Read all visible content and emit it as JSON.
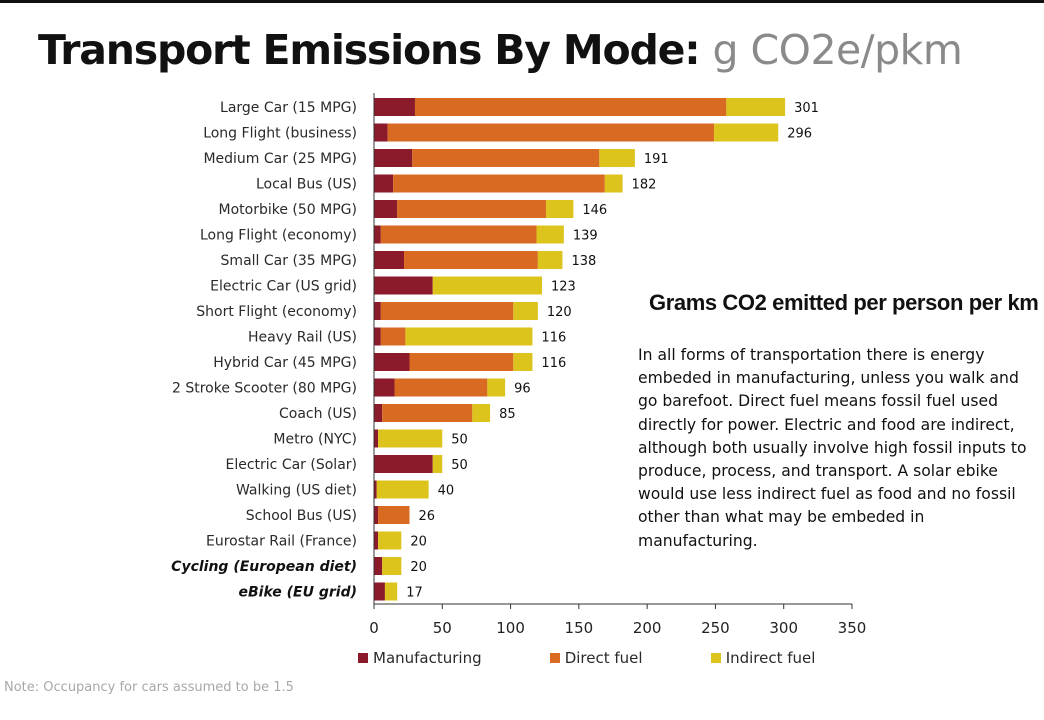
{
  "title": {
    "main": "Transport Emissions By Mode:",
    "unit": "g CO2e/pkm"
  },
  "colors": {
    "manufacturing": "#8b1a2b",
    "direct_fuel": "#d86a22",
    "indirect_fuel": "#dcc41c",
    "axis": "#333333"
  },
  "chart_data": {
    "type": "bar",
    "orientation": "horizontal",
    "stacked": true,
    "categories": [
      "Large Car (15 MPG)",
      "Long Flight (business)",
      "Medium Car (25 MPG)",
      "Local Bus (US)",
      "Motorbike (50 MPG)",
      "Long Flight (economy)",
      "Small Car (35 MPG)",
      "Electric Car (US grid)",
      "Short Flight (economy)",
      "Heavy Rail (US)",
      "Hybrid Car (45 MPG)",
      "2 Stroke Scooter (80 MPG)",
      "Coach (US)",
      "Metro (NYC)",
      "Electric Car (Solar)",
      "Walking (US diet)",
      "School Bus (US)",
      "Eurostar Rail (France)",
      "Cycling (European diet)",
      "eBike (EU grid)"
    ],
    "emphasized_categories": [
      "Cycling (European diet)",
      "eBike (EU grid)"
    ],
    "series": [
      {
        "name": "Manufacturing",
        "values": [
          30,
          10,
          28,
          14,
          17,
          5,
          22,
          43,
          5,
          5,
          26,
          15,
          6,
          3,
          43,
          2,
          3,
          3,
          6,
          8
        ]
      },
      {
        "name": "Direct fuel",
        "values": [
          228,
          239,
          137,
          155,
          109,
          114,
          98,
          0,
          97,
          18,
          76,
          68,
          66,
          0,
          0,
          0,
          23,
          0,
          0,
          0
        ]
      },
      {
        "name": "Indirect fuel",
        "values": [
          43,
          47,
          26,
          13,
          20,
          20,
          18,
          80,
          18,
          93,
          14,
          13,
          13,
          47,
          7,
          38,
          0,
          17,
          14,
          9
        ]
      }
    ],
    "totals": [
      301,
      296,
      191,
      182,
      146,
      139,
      138,
      123,
      120,
      116,
      116,
      96,
      85,
      50,
      50,
      40,
      26,
      20,
      20,
      17
    ],
    "xlim": [
      0,
      350
    ],
    "xticks": [
      0,
      50,
      100,
      150,
      200,
      250,
      300,
      350
    ],
    "grid": false,
    "legend_position": "bottom"
  },
  "legend": {
    "manufacturing": "Manufacturing",
    "direct_fuel": "Direct fuel",
    "indirect_fuel": "Indirect fuel"
  },
  "panel": {
    "heading": "Grams CO2 emitted per person per km",
    "body": "In all forms of transportation there is energy embeded in manufacturing, unless you walk and go barefoot. Direct fuel means fossil fuel used directly for power. Electric and food are indirect, although both usually involve high fossil inputs to produce,  process, and transport. A solar ebike would use less indirect fuel as food and no fossil other than what may be embeded in manufacturing."
  },
  "footnote": "Note: Occupancy for cars assumed to be 1.5"
}
